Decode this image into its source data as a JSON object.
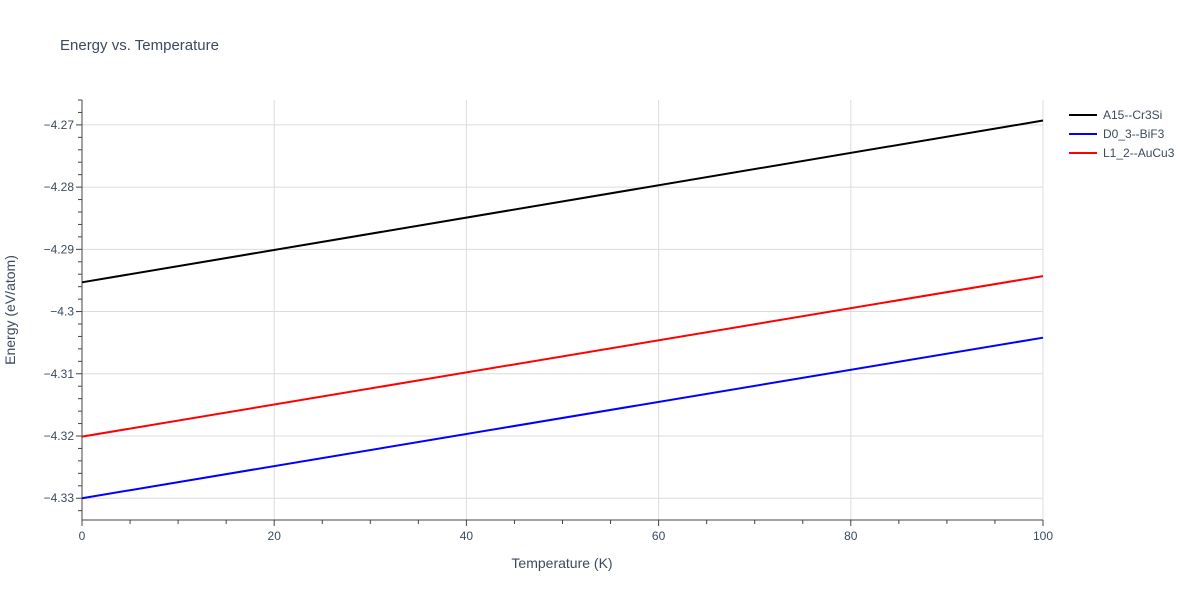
{
  "chart_data": {
    "type": "line",
    "title": "Energy vs. Temperature",
    "xlabel": "Temperature (K)",
    "ylabel": "Energy (eV/atom)",
    "xlim": [
      0,
      100
    ],
    "ylim": [
      -4.3335,
      -4.266
    ],
    "x_ticks": [
      0,
      20,
      40,
      60,
      80,
      100
    ],
    "x_tick_labels": [
      "0",
      "20",
      "40",
      "60",
      "80",
      "100"
    ],
    "y_ticks": [
      -4.27,
      -4.28,
      -4.29,
      -4.3,
      -4.31,
      -4.32,
      -4.33
    ],
    "y_tick_labels": [
      "−4.27",
      "−4.28",
      "−4.29",
      "−4.3",
      "−4.31",
      "−4.32",
      "−4.33"
    ],
    "grid": true,
    "legend_position": "top-right",
    "series": [
      {
        "name": "A15--Cr3Si",
        "color": "#000000",
        "x": [
          0,
          100
        ],
        "y": [
          -4.2953,
          -4.2693
        ]
      },
      {
        "name": "D0_3--BiF3",
        "color": "#0000ff",
        "x": [
          0,
          100
        ],
        "y": [
          -4.33,
          -4.3042
        ]
      },
      {
        "name": "L1_2--AuCu3",
        "color": "#ff0000",
        "x": [
          0,
          100
        ],
        "y": [
          -4.3201,
          -4.2943
        ]
      }
    ]
  }
}
